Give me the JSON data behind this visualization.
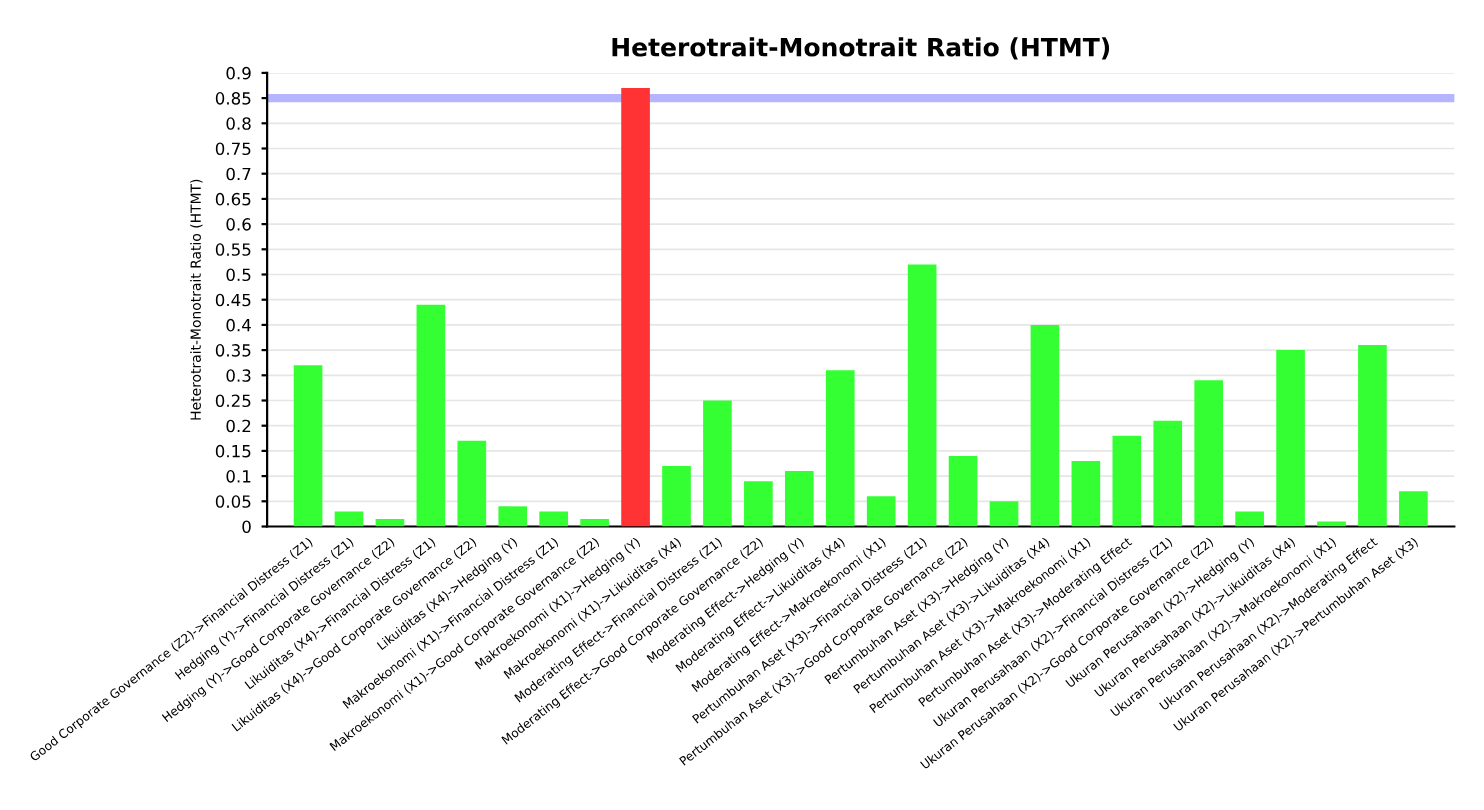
{
  "chart_data": {
    "type": "bar",
    "title": "Heterotrait-Monotrait Ratio (HTMT)",
    "ylabel": "Heterotrait-Monotrait Ratio (HTMT)",
    "categories": [
      "Good Corporate Governance (Z2)->Financial Distress (Z1)",
      "Hedging (Y)->Financial Distress (Z1)",
      "Hedging (Y)->Good Corporate Governance (Z2)",
      "Likuiditas (X4)->Financial Distress (Z1)",
      "Likuiditas (X4)->Good Corporate Governance (Z2)",
      "Likuiditas (X4)->Hedging (Y)",
      "Makroekonomi (X1)->Financial Distress (Z1)",
      "Makroekonomi (X1)->Good Corporate Governance (Z2)",
      "Makroekonomi (X1)->Hedging (Y)",
      "Makroekonomi (X1)->Likuiditas (X4)",
      "Moderating Effect->Financial Distress (Z1)",
      "Moderating Effect->Good Corporate Governance (Z2)",
      "Moderating Effect->Hedging (Y)",
      "Moderating Effect->Likuiditas (X4)",
      "Moderating Effect->Makroekonomi (X1)",
      "Pertumbuhan Aset (X3)->Financial Distress (Z1)",
      "Pertumbuhan Aset (X3)->Good Corporate Governance (Z2)",
      "Pertumbuhan Aset (X3)->Hedging (Y)",
      "Pertumbuhan Aset (X3)->Likuiditas (X4)",
      "Pertumbuhan Aset (X3)->Makroekonomi (X1)",
      "Pertumbuhan Aset (X3)->Moderating Effect",
      "Ukuran Perusahaan (X2)->Financial Distress (Z1)",
      "Ukuran Perusahaan (X2)->Good Corporate Governance (Z2)",
      "Ukuran Perusahaan (X2)->Hedging (Y)",
      "Ukuran Perusahaan (X2)->Likuiditas (X4)",
      "Ukuran Perusahaan (X2)->Makroekonomi (X1)",
      "Ukuran Perusahaan (X2)->Moderating Effect",
      "Ukuran Perusahaan (X2)->Pertumbuhan Aset (X3)"
    ],
    "values": [
      0.32,
      0.03,
      0.015,
      0.44,
      0.17,
      0.04,
      0.03,
      0.015,
      0.87,
      0.12,
      0.25,
      0.09,
      0.11,
      0.31,
      0.06,
      0.52,
      0.14,
      0.05,
      0.4,
      0.13,
      0.18,
      0.21,
      0.29,
      0.03,
      0.35,
      0.01,
      0.36,
      0.07
    ],
    "colors": [
      "#33ff33",
      "#33ff33",
      "#33ff33",
      "#33ff33",
      "#33ff33",
      "#33ff33",
      "#33ff33",
      "#33ff33",
      "#ff3333",
      "#33ff33",
      "#33ff33",
      "#33ff33",
      "#33ff33",
      "#33ff33",
      "#33ff33",
      "#33ff33",
      "#33ff33",
      "#33ff33",
      "#33ff33",
      "#33ff33",
      "#33ff33",
      "#33ff33",
      "#33ff33",
      "#33ff33",
      "#33ff33",
      "#33ff33",
      "#33ff33",
      "#33ff33"
    ],
    "ylim": [
      0,
      0.9
    ],
    "yticks": [
      0,
      0.05,
      0.1,
      0.15,
      0.2,
      0.25,
      0.3,
      0.35,
      0.4,
      0.45,
      0.5,
      0.55,
      0.6,
      0.65,
      0.7,
      0.75,
      0.8,
      0.85,
      0.9
    ],
    "ref_lines": [
      {
        "axis": "y",
        "value": 0.85,
        "label": null,
        "color": "#b4b4ff"
      }
    ],
    "grid": "y",
    "legend": false
  }
}
